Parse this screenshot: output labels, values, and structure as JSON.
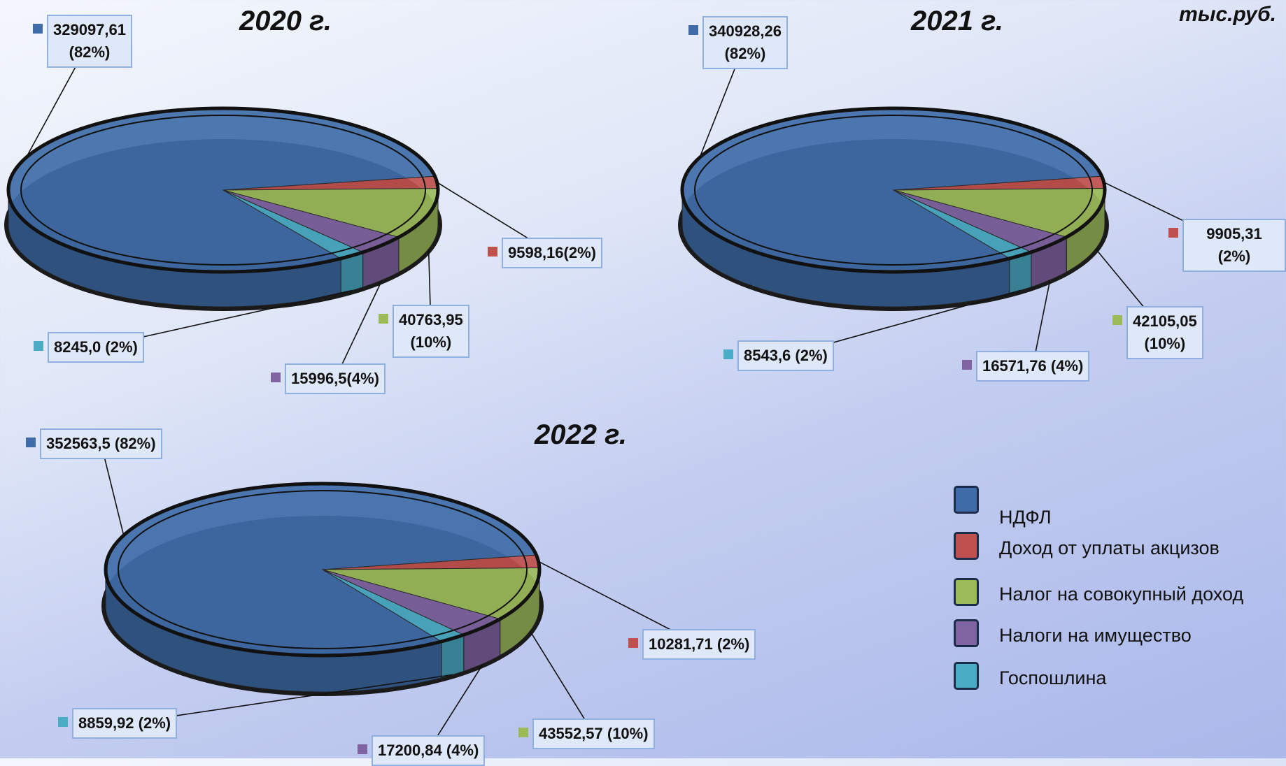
{
  "unit": "тыс.руб.",
  "chart_data": [
    {
      "type": "pie",
      "title": "2020 г.",
      "categories": [
        "НДФЛ",
        "Доход от уплаты акцизов",
        "Налог на совокупный доход",
        "Налоги на имущество",
        "Госпошлина"
      ],
      "colors": [
        "#3f6ca8",
        "#c0504d",
        "#9bbb59",
        "#8064a2",
        "#4bacc6"
      ],
      "values": [
        329097.61,
        9598.16,
        40763.95,
        15996.5,
        8245.0
      ],
      "value_labels": [
        "329097,61\n(82%)",
        "9598,16(2%)",
        "40763,95\n(10%)",
        "15996,5(4%)",
        "8245,0 (2%)"
      ]
    },
    {
      "type": "pie",
      "title": "2021 г.",
      "colors": [
        "#3f6ca8",
        "#c0504d",
        "#9bbb59",
        "#8064a2",
        "#4bacc6"
      ],
      "values": [
        340928.26,
        9905.31,
        42105.05,
        16571.76,
        8543.6
      ],
      "value_labels": [
        "340928,26\n(82%)",
        "9905,31 (2%)",
        "42105,05\n(10%)",
        "16571,76 (4%)",
        "8543,6 (2%)"
      ]
    },
    {
      "type": "pie",
      "title": "2022 г.",
      "colors": [
        "#3f6ca8",
        "#c0504d",
        "#9bbb59",
        "#8064a2",
        "#4bacc6"
      ],
      "values": [
        352563.5,
        10281.71,
        43552.57,
        17200.84,
        8859.92
      ],
      "value_labels": [
        "352563,5 (82%)",
        "10281,71 (2%)",
        "43552,57 (10%)",
        "17200,84 (4%)",
        "8859,92 (2%)"
      ]
    }
  ]
}
